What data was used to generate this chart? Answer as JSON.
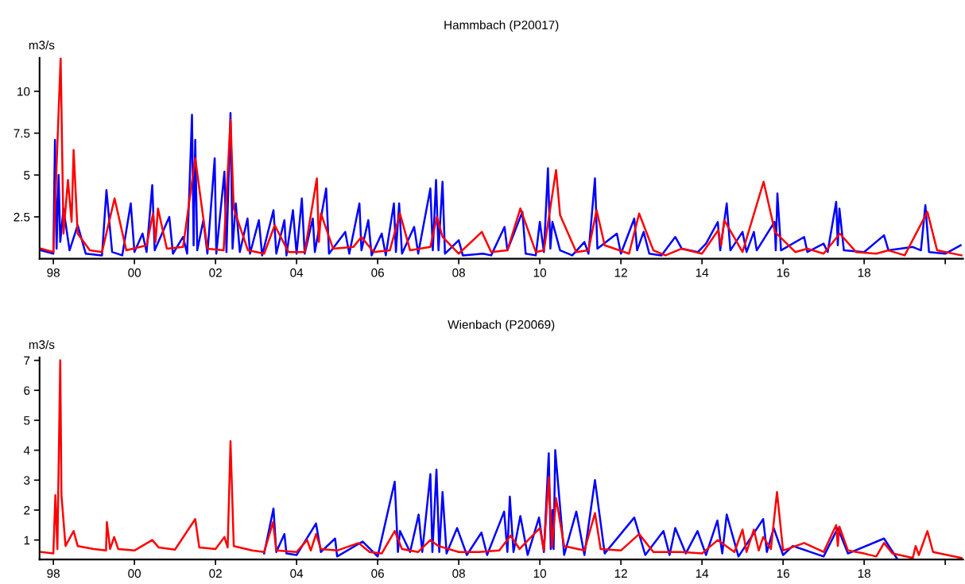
{
  "chart_data": [
    {
      "type": "line",
      "title": "Hammbach (P20017)",
      "ylabel": "m3/s",
      "xlim": [
        1997.66,
        2020.44
      ],
      "ylim": [
        0,
        12
      ],
      "xticks": [
        {
          "value": 1998,
          "label": "98"
        },
        {
          "value": 2000,
          "label": "00"
        },
        {
          "value": 2002,
          "label": "02"
        },
        {
          "value": 2004,
          "label": "04"
        },
        {
          "value": 2006,
          "label": "06"
        },
        {
          "value": 2008,
          "label": "08"
        },
        {
          "value": 2010,
          "label": "10"
        },
        {
          "value": 2012,
          "label": "12"
        },
        {
          "value": 2014,
          "label": "14"
        },
        {
          "value": 2016,
          "label": "16"
        },
        {
          "value": 2018,
          "label": "18"
        },
        {
          "value": 2020,
          "label": null
        }
      ],
      "yticks": [
        2.5,
        5,
        7.5,
        10
      ],
      "series": [
        {
          "color": "#0000ff",
          "x": [
            1997.7,
            1998.0,
            1998.04,
            1998.08,
            1998.13,
            1998.17,
            1998.25,
            1998.4,
            1998.6,
            1998.8,
            1999.2,
            1999.31,
            1999.45,
            1999.7,
            1999.91,
            2000.0,
            2000.2,
            2000.3,
            2000.44,
            2000.5,
            2000.86,
            2000.95,
            2001.2,
            2001.3,
            2001.42,
            2001.46,
            2001.5,
            2001.55,
            2001.7,
            2001.8,
            2001.98,
            2002.02,
            2002.22,
            2002.27,
            2002.37,
            2002.42,
            2002.5,
            2002.6,
            2002.79,
            2002.85,
            2003.07,
            2003.15,
            2003.43,
            2003.5,
            2003.7,
            2003.75,
            2003.91,
            2004.0,
            2004.13,
            2004.2,
            2004.4,
            2004.45,
            2004.73,
            2004.8,
            2005.2,
            2005.3,
            2005.55,
            2005.6,
            2005.77,
            2005.85,
            2006.1,
            2006.2,
            2006.4,
            2006.45,
            2006.53,
            2006.6,
            2006.9,
            2007.0,
            2007.3,
            2007.36,
            2007.44,
            2007.5,
            2007.6,
            2007.66,
            2008.0,
            2008.1,
            2008.6,
            2008.8,
            2009.13,
            2009.2,
            2009.57,
            2009.65,
            2009.9,
            2010.0,
            2010.1,
            2010.2,
            2010.26,
            2010.31,
            2010.5,
            2010.8,
            2011.1,
            2011.2,
            2011.36,
            2011.42,
            2011.9,
            2012.0,
            2012.33,
            2012.4,
            2012.56,
            2012.7,
            2013.0,
            2013.34,
            2013.5,
            2013.9,
            2014.1,
            2014.39,
            2014.45,
            2014.61,
            2014.7,
            2015.0,
            2015.1,
            2015.28,
            2015.35,
            2015.79,
            2015.82,
            2015.86,
            2015.95,
            2016.52,
            2016.6,
            2017.0,
            2017.1,
            2017.31,
            2017.35,
            2017.39,
            2017.5,
            2018.0,
            2018.49,
            2018.6,
            2019.2,
            2019.4,
            2019.51,
            2019.6,
            2020.0,
            2020.38
          ],
          "values": [
            0.5,
            0.3,
            7.1,
            0.6,
            5.0,
            1.0,
            3.0,
            0.5,
            2.0,
            0.3,
            0.2,
            4.1,
            0.4,
            0.2,
            3.3,
            0.4,
            1.5,
            0.4,
            4.4,
            0.5,
            2.5,
            0.3,
            1.3,
            0.3,
            8.6,
            0.8,
            7.1,
            0.5,
            2.3,
            0.3,
            6.0,
            0.3,
            5.2,
            0.4,
            8.7,
            0.6,
            3.3,
            0.4,
            2.4,
            0.3,
            2.3,
            0.2,
            2.9,
            0.3,
            2.3,
            0.2,
            2.9,
            0.3,
            3.6,
            0.3,
            2.4,
            0.4,
            4.2,
            0.3,
            1.6,
            0.3,
            3.3,
            0.5,
            2.3,
            0.2,
            1.5,
            0.2,
            3.3,
            0.4,
            3.3,
            0.3,
            1.9,
            0.3,
            4.2,
            0.5,
            4.7,
            0.5,
            4.6,
            0.3,
            1.1,
            0.2,
            0.3,
            0.2,
            1.9,
            0.5,
            2.8,
            0.3,
            0.2,
            2.2,
            0.4,
            5.4,
            0.6,
            2.2,
            0.5,
            0.2,
            1.0,
            0.3,
            4.8,
            0.6,
            1.5,
            0.3,
            2.4,
            0.5,
            1.6,
            0.3,
            0.2,
            1.3,
            0.6,
            0.4,
            0.9,
            2.2,
            0.5,
            3.3,
            0.5,
            1.6,
            0.4,
            1.6,
            0.5,
            2.2,
            0.5,
            3.9,
            0.5,
            1.3,
            0.4,
            0.9,
            0.4,
            3.4,
            0.8,
            3.0,
            0.5,
            0.4,
            1.4,
            0.5,
            0.7,
            0.5,
            3.2,
            0.4,
            0.3,
            0.8
          ]
        },
        {
          "color": "#ff0000",
          "x": [
            1997.7,
            1998.0,
            1998.18,
            1998.25,
            1998.36,
            1998.45,
            1998.5,
            1998.6,
            1998.9,
            1999.2,
            1999.51,
            1999.8,
            2000.3,
            2000.46,
            2000.52,
            2000.58,
            2000.8,
            2001.2,
            2001.5,
            2001.8,
            2002.2,
            2002.37,
            2002.45,
            2002.8,
            2003.2,
            2003.46,
            2003.8,
            2004.2,
            2004.5,
            2004.55,
            2004.6,
            2004.9,
            2005.4,
            2005.6,
            2005.9,
            2006.3,
            2006.55,
            2006.8,
            2007.3,
            2007.46,
            2007.6,
            2008.0,
            2008.57,
            2008.8,
            2009.2,
            2009.52,
            2009.9,
            2010.1,
            2010.4,
            2010.5,
            2010.9,
            2011.2,
            2011.4,
            2011.6,
            2012.2,
            2012.45,
            2012.8,
            2013.1,
            2013.5,
            2014.0,
            2014.4,
            2014.47,
            2014.55,
            2015.0,
            2015.52,
            2015.8,
            2016.3,
            2016.6,
            2017.0,
            2017.4,
            2017.8,
            2018.3,
            2018.6,
            2019.0,
            2019.56,
            2019.8,
            2020.4
          ],
          "values": [
            0.6,
            0.4,
            12.0,
            1.5,
            4.7,
            2.2,
            6.5,
            1.5,
            0.5,
            0.4,
            3.6,
            0.5,
            0.8,
            2.7,
            1.0,
            3.0,
            0.6,
            0.7,
            6.0,
            0.6,
            0.5,
            8.3,
            3.0,
            0.5,
            0.3,
            2.0,
            0.4,
            0.4,
            4.8,
            1.0,
            2.7,
            0.6,
            0.7,
            1.3,
            0.4,
            0.5,
            2.7,
            0.5,
            0.7,
            2.5,
            1.3,
            0.3,
            1.6,
            0.4,
            0.5,
            3.0,
            0.4,
            0.5,
            5.3,
            2.6,
            0.4,
            0.5,
            2.9,
            0.8,
            0.3,
            2.7,
            0.5,
            0.2,
            0.6,
            0.3,
            1.7,
            0.8,
            2.3,
            0.4,
            4.6,
            1.6,
            0.4,
            0.6,
            0.3,
            1.5,
            0.4,
            0.3,
            0.5,
            0.2,
            2.8,
            0.5,
            0.2
          ]
        }
      ]
    },
    {
      "type": "line",
      "title": "Wienbach (P20069)",
      "ylabel": "m3/s",
      "xlim": [
        1997.66,
        2020.44
      ],
      "ylim": [
        0.35,
        7.1
      ],
      "xticks": [
        {
          "value": 1998,
          "label": "98"
        },
        {
          "value": 2000,
          "label": "00"
        },
        {
          "value": 2002,
          "label": "02"
        },
        {
          "value": 2004,
          "label": "04"
        },
        {
          "value": 2006,
          "label": "06"
        },
        {
          "value": 2008,
          "label": "08"
        },
        {
          "value": 2010,
          "label": "10"
        },
        {
          "value": 2012,
          "label": "12"
        },
        {
          "value": 2014,
          "label": "14"
        },
        {
          "value": 2016,
          "label": "16"
        },
        {
          "value": 2018,
          "label": "18"
        },
        {
          "value": 2020,
          "label": null
        }
      ],
      "yticks": [
        1,
        2,
        3,
        4,
        5,
        6,
        7
      ],
      "series": [
        {
          "color": "#0000ff",
          "x": [
            2003.2,
            2003.43,
            2003.5,
            2003.7,
            2003.75,
            2004.0,
            2004.48,
            2004.6,
            2004.95,
            2005.0,
            2005.63,
            2006.0,
            2006.42,
            2006.5,
            2006.55,
            2006.8,
            2007.01,
            2007.1,
            2007.3,
            2007.35,
            2007.45,
            2007.52,
            2007.6,
            2007.7,
            2007.96,
            2008.2,
            2008.56,
            2008.7,
            2009.12,
            2009.2,
            2009.26,
            2009.35,
            2009.52,
            2009.7,
            2009.98,
            2010.1,
            2010.22,
            2010.27,
            2010.31,
            2010.34,
            2010.38,
            2010.6,
            2010.9,
            2011.1,
            2011.36,
            2011.6,
            2012.33,
            2012.6,
            2013.05,
            2013.2,
            2013.34,
            2013.6,
            2013.89,
            2014.1,
            2014.38,
            2014.5,
            2014.61,
            2014.9,
            2015.51,
            2015.6,
            2015.77,
            2016.0,
            2016.24,
            2017.0,
            2017.35,
            2017.6,
            2018.49,
            2018.8
          ],
          "values": [
            0.55,
            2.05,
            0.6,
            1.2,
            0.55,
            0.5,
            1.55,
            0.6,
            1.05,
            0.45,
            0.95,
            0.45,
            2.95,
            0.6,
            1.3,
            0.6,
            1.85,
            0.6,
            3.2,
            0.6,
            3.35,
            0.6,
            2.6,
            0.55,
            1.4,
            0.5,
            1.25,
            0.5,
            1.95,
            0.6,
            2.45,
            0.6,
            1.8,
            0.5,
            1.75,
            0.6,
            3.9,
            0.7,
            2.0,
            0.7,
            4.0,
            0.5,
            1.95,
            0.5,
            3.0,
            0.55,
            1.75,
            0.5,
            1.3,
            0.5,
            1.4,
            0.55,
            1.3,
            0.5,
            1.65,
            0.55,
            1.85,
            0.45,
            1.7,
            0.6,
            1.4,
            0.5,
            0.8,
            0.45,
            1.4,
            0.55,
            1.05,
            0.4
          ]
        },
        {
          "color": "#ff0000",
          "x": [
            1997.7,
            1998.0,
            1998.05,
            1998.1,
            1998.17,
            1998.2,
            1998.3,
            1998.5,
            1998.6,
            1999.0,
            1999.3,
            1999.32,
            1999.4,
            1999.5,
            1999.6,
            2000.0,
            2000.44,
            2000.6,
            2001.0,
            2001.5,
            2001.6,
            2002.0,
            2002.22,
            2002.3,
            2002.37,
            2002.45,
            2002.9,
            2003.2,
            2003.42,
            2003.5,
            2004.0,
            2004.26,
            2004.35,
            2004.48,
            2004.6,
            2005.0,
            2005.53,
            2005.8,
            2006.1,
            2006.42,
            2006.6,
            2007.0,
            2007.3,
            2007.5,
            2008.0,
            2008.5,
            2009.0,
            2009.28,
            2009.5,
            2010.0,
            2010.1,
            2010.22,
            2010.3,
            2010.4,
            2010.6,
            2011.1,
            2011.36,
            2011.5,
            2012.0,
            2012.45,
            2012.8,
            2013.5,
            2014.0,
            2014.39,
            2014.8,
            2015.0,
            2015.1,
            2015.28,
            2015.4,
            2015.51,
            2015.7,
            2015.85,
            2016.0,
            2016.52,
            2017.0,
            2017.31,
            2017.35,
            2017.39,
            2017.6,
            2018.0,
            2018.3,
            2018.49,
            2018.7,
            2019.2,
            2019.27,
            2019.35,
            2019.56,
            2019.7,
            2020.4
          ],
          "values": [
            0.6,
            0.55,
            2.5,
            0.7,
            7.0,
            2.5,
            0.8,
            1.3,
            0.8,
            0.7,
            0.65,
            1.6,
            0.7,
            1.1,
            0.7,
            0.65,
            1.0,
            0.75,
            0.68,
            1.7,
            0.75,
            0.7,
            1.1,
            0.75,
            4.3,
            0.8,
            0.65,
            0.6,
            1.6,
            0.65,
            0.6,
            1.0,
            0.65,
            1.2,
            0.7,
            0.65,
            0.9,
            0.6,
            0.55,
            1.3,
            0.7,
            0.6,
            1.0,
            0.8,
            0.6,
            0.6,
            0.65,
            1.15,
            0.7,
            1.4,
            0.65,
            3.1,
            0.75,
            2.4,
            0.8,
            0.65,
            1.9,
            0.7,
            0.65,
            1.2,
            0.6,
            0.6,
            0.55,
            1.0,
            0.6,
            1.35,
            0.6,
            1.35,
            0.65,
            1.1,
            0.7,
            2.6,
            0.65,
            0.9,
            0.6,
            1.5,
            0.8,
            1.45,
            0.65,
            0.55,
            0.45,
            0.9,
            0.55,
            0.4,
            0.8,
            0.5,
            1.3,
            0.6,
            0.4
          ]
        }
      ]
    }
  ]
}
